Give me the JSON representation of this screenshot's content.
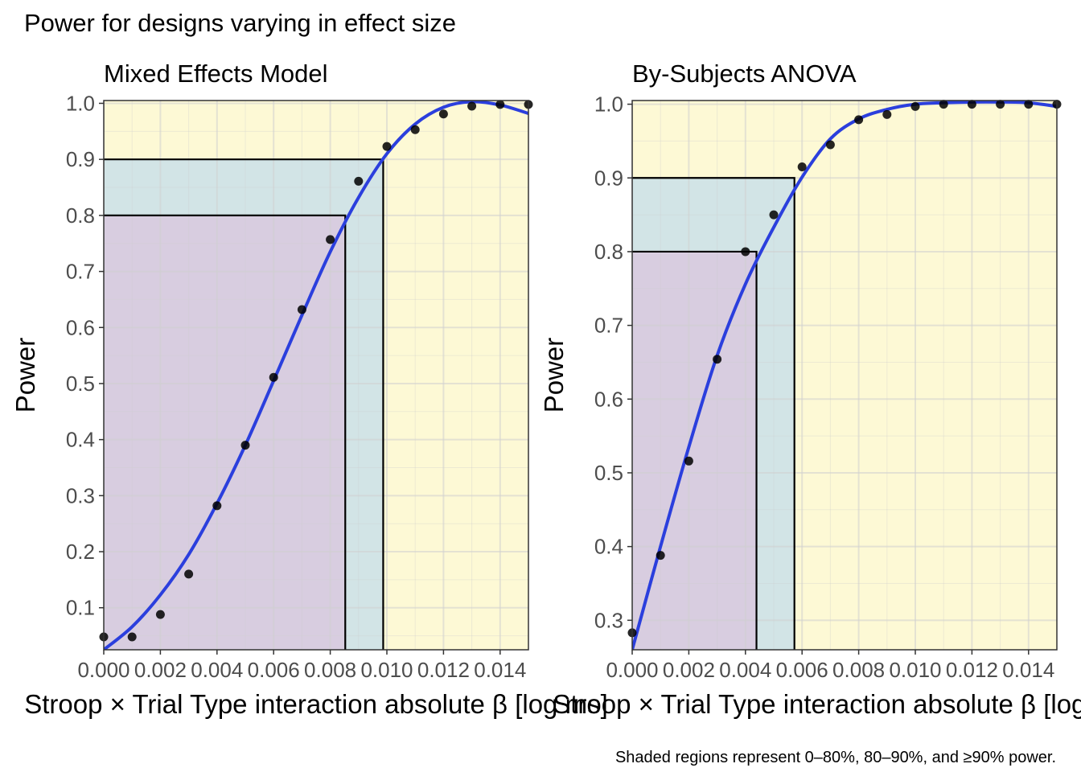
{
  "title": "Power for designs varying in effect size",
  "caption": "Shaded regions represent 0–80%, 80–90%, and ≥90% power.",
  "colors": {
    "region_low": "#d8cde0",
    "region_mid": "#d2e4e6",
    "region_high": "#fdf9d5",
    "curve": "#2b3fdd",
    "points": "#000000",
    "reference_lines": "#000000"
  },
  "chart_data": [
    {
      "type": "scatter",
      "title": "Mixed Effects Model",
      "xlabel": "Stroop × Trial Type interaction absolute β [log ms]",
      "ylabel": "Power",
      "xlim": [
        0,
        0.015
      ],
      "ylim": [
        0.025,
        1.005
      ],
      "x_ticks": [
        0,
        0.002,
        0.004,
        0.006,
        0.008,
        0.01,
        0.012,
        0.014
      ],
      "x_tick_labels": [
        "0.000",
        "0.002",
        "0.004",
        "0.006",
        "0.008",
        "0.010",
        "0.012",
        "0.014"
      ],
      "y_ticks": [
        0.1,
        0.2,
        0.3,
        0.4,
        0.5,
        0.6,
        0.7,
        0.8,
        0.9,
        1.0
      ],
      "y_tick_labels": [
        "0.1",
        "0.2",
        "0.3",
        "0.4",
        "0.5",
        "0.6",
        "0.7",
        "0.8",
        "0.9",
        "1.0"
      ],
      "grid": true,
      "points": {
        "x": [
          0,
          0.001,
          0.002,
          0.003,
          0.004,
          0.005,
          0.006,
          0.007,
          0.008,
          0.009,
          0.01,
          0.011,
          0.012,
          0.013,
          0.014,
          0.015
        ],
        "y": [
          0.048,
          0.048,
          0.088,
          0.16,
          0.282,
          0.39,
          0.511,
          0.632,
          0.757,
          0.861,
          0.923,
          0.953,
          0.981,
          0.995,
          0.998,
          0.998
        ]
      },
      "curve": {
        "x": [
          0,
          0.001,
          0.002,
          0.003,
          0.004,
          0.005,
          0.006,
          0.007,
          0.008,
          0.009,
          0.01,
          0.011,
          0.012,
          0.013,
          0.014,
          0.015
        ],
        "y": [
          0.025,
          0.066,
          0.123,
          0.195,
          0.286,
          0.39,
          0.505,
          0.622,
          0.735,
          0.832,
          0.91,
          0.963,
          0.993,
          1.003,
          0.997,
          0.982
        ]
      },
      "thresholds": [
        {
          "power": 0.8,
          "effect": 0.00853
        },
        {
          "power": 0.9,
          "effect": 0.00987
        }
      ]
    },
    {
      "type": "scatter",
      "title": "By-Subjects ANOVA",
      "xlabel": "Stroop × Trial Type interaction absolute β [log ms]",
      "ylabel": "Power",
      "xlim": [
        0,
        0.015
      ],
      "ylim": [
        0.26,
        1.005
      ],
      "x_ticks": [
        0,
        0.002,
        0.004,
        0.006,
        0.008,
        0.01,
        0.012,
        0.014
      ],
      "x_tick_labels": [
        "0.000",
        "0.002",
        "0.004",
        "0.006",
        "0.008",
        "0.010",
        "0.012",
        "0.014"
      ],
      "y_ticks": [
        0.3,
        0.4,
        0.5,
        0.6,
        0.7,
        0.8,
        0.9,
        1.0
      ],
      "y_tick_labels": [
        "0.3",
        "0.4",
        "0.5",
        "0.6",
        "0.7",
        "0.8",
        "0.9",
        "1.0"
      ],
      "grid": true,
      "points": {
        "x": [
          0,
          0.001,
          0.002,
          0.003,
          0.004,
          0.005,
          0.006,
          0.007,
          0.008,
          0.009,
          0.01,
          0.011,
          0.012,
          0.013,
          0.014,
          0.015
        ],
        "y": [
          0.283,
          0.388,
          0.516,
          0.654,
          0.8,
          0.85,
          0.915,
          0.945,
          0.979,
          0.986,
          0.997,
          1.0,
          1.0,
          1.0,
          1.0,
          1.0
        ]
      },
      "curve": {
        "x": [
          0,
          0.001,
          0.002,
          0.003,
          0.004,
          0.005,
          0.006,
          0.007,
          0.008,
          0.009,
          0.01,
          0.011,
          0.012,
          0.013,
          0.014,
          0.015
        ],
        "y": [
          0.26,
          0.4,
          0.535,
          0.659,
          0.756,
          0.833,
          0.901,
          0.953,
          0.98,
          0.993,
          1.0,
          1.002,
          1.003,
          1.003,
          1.002,
          0.997
        ]
      },
      "thresholds": [
        {
          "power": 0.8,
          "effect": 0.00439
        },
        {
          "power": 0.9,
          "effect": 0.00573
        }
      ]
    }
  ]
}
